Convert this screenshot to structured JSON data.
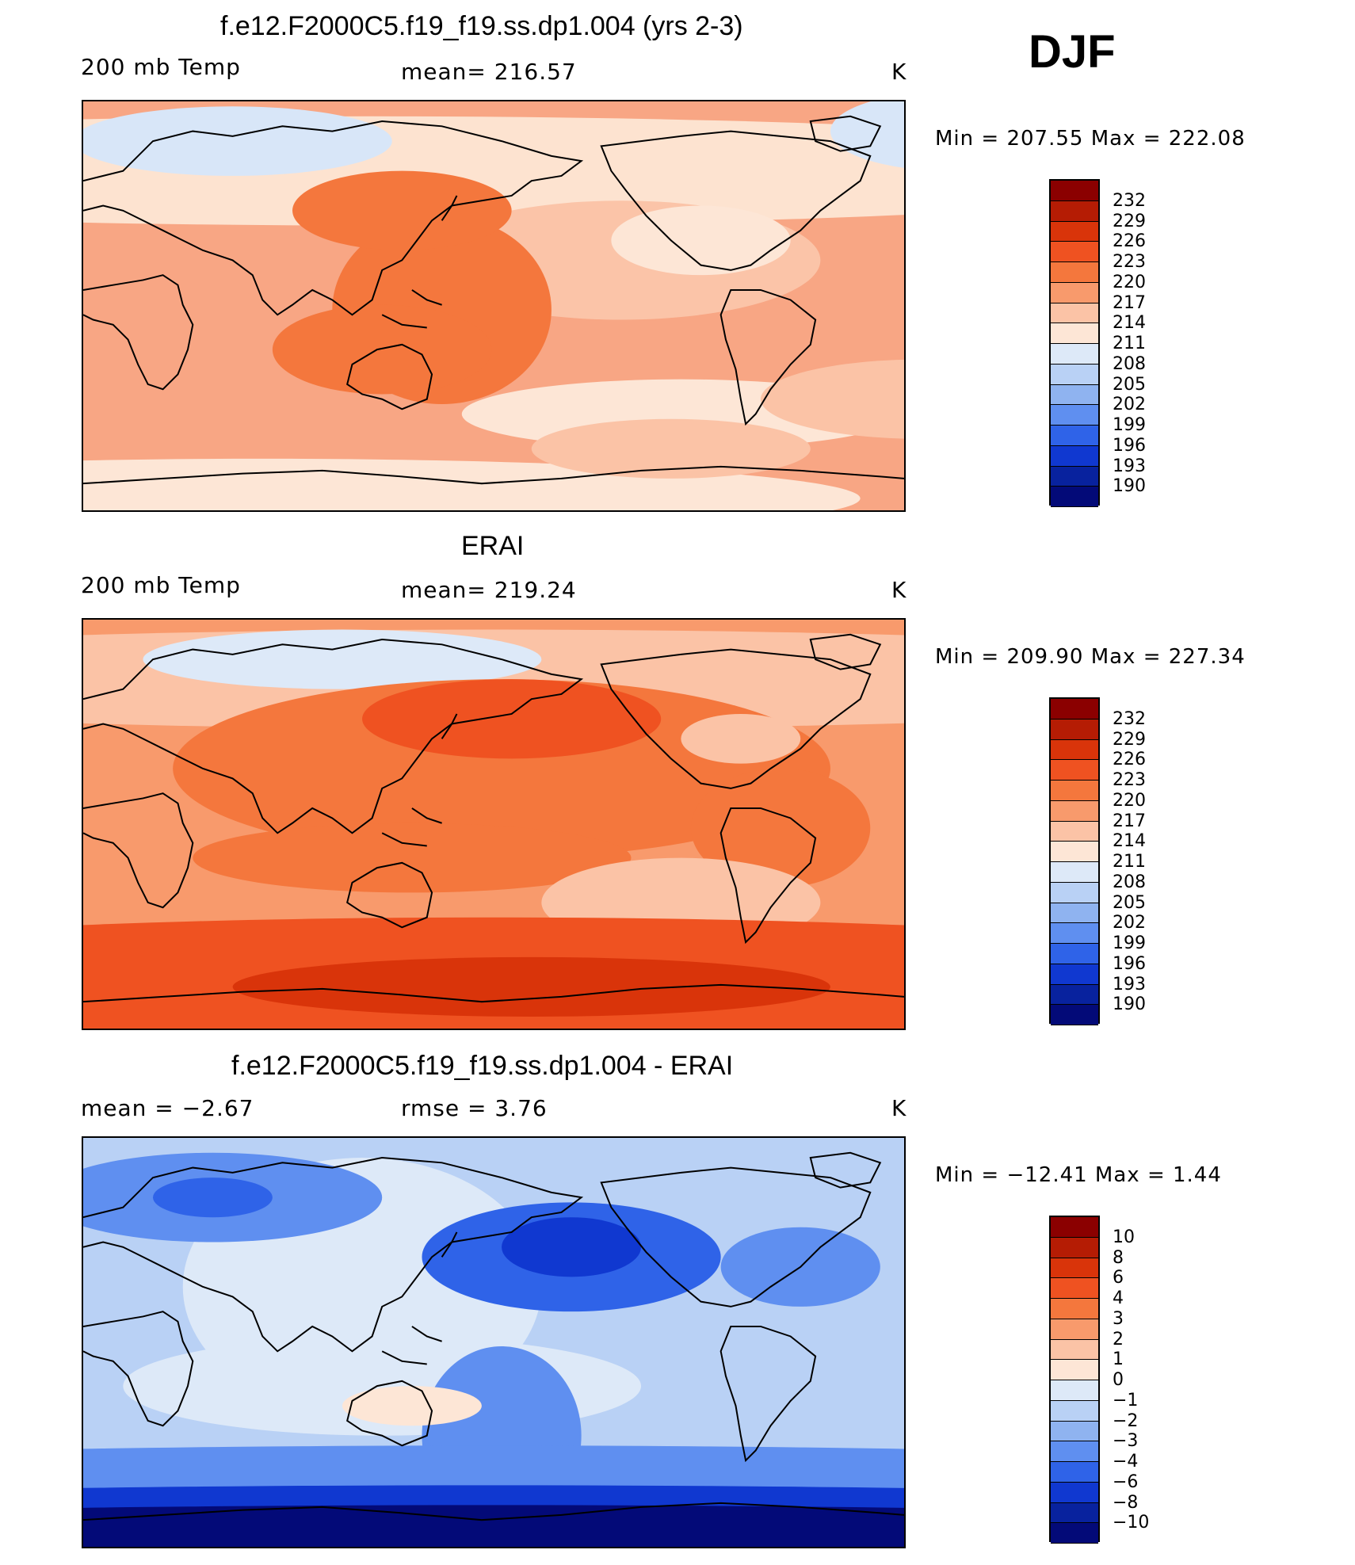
{
  "season_label": "DJF",
  "panels": [
    {
      "id": "model",
      "title": "f.e12.F2000C5.f19_f19.ss.dp1.004 (yrs 2-3)",
      "left_label": "200 mb Temp",
      "center_label": "mean=  216.57",
      "units": "K",
      "minmax": "Min  =  207.55  Max  =  222.08",
      "colorbar_labels": [
        "232",
        "229",
        "226",
        "223",
        "220",
        "217",
        "214",
        "211",
        "208",
        "205",
        "202",
        "199",
        "196",
        "193",
        "190"
      ],
      "colorbar_colors": [
        "#8b0000",
        "#b51c04",
        "#d9340a",
        "#ef5221",
        "#f4773d",
        "#f89a6c",
        "#fbc3a6",
        "#fde6d6",
        "#dde9f8",
        "#b9d1f5",
        "#8fb3f0",
        "#5f8ff0",
        "#2f63e8",
        "#1038d0",
        "#08229e",
        "#030a78"
      ],
      "field": {
        "base": "#f8a684",
        "blobs": [
          {
            "cx": 290,
            "cy": 70,
            "rx": 900,
            "ry": 55,
            "c": "#fde3d0"
          },
          {
            "cx": 150,
            "cy": 40,
            "rx": 160,
            "ry": 35,
            "c": "#d8e6f8"
          },
          {
            "cx": 870,
            "cy": 30,
            "rx": 120,
            "ry": 40,
            "c": "#d8e6f8"
          },
          {
            "cx": 540,
            "cy": 160,
            "rx": 200,
            "ry": 60,
            "c": "#fbc4a8"
          },
          {
            "cx": 620,
            "cy": 140,
            "rx": 90,
            "ry": 35,
            "c": "#fde6d6"
          },
          {
            "cx": 360,
            "cy": 210,
            "rx": 110,
            "ry": 95,
            "c": "#f4773d"
          },
          {
            "cx": 320,
            "cy": 110,
            "rx": 110,
            "ry": 40,
            "c": "#f4773d"
          },
          {
            "cx": 300,
            "cy": 250,
            "rx": 110,
            "ry": 45,
            "c": "#f4773d"
          },
          {
            "cx": 180,
            "cy": 400,
            "rx": 600,
            "ry": 40,
            "c": "#fde6d6"
          },
          {
            "cx": 600,
            "cy": 315,
            "rx": 220,
            "ry": 35,
            "c": "#fde6d6"
          },
          {
            "cx": 590,
            "cy": 350,
            "rx": 140,
            "ry": 30,
            "c": "#fbc3a6"
          },
          {
            "cx": 840,
            "cy": 300,
            "rx": 160,
            "ry": 40,
            "c": "#fbc3a6"
          }
        ]
      }
    },
    {
      "id": "obs",
      "title": "ERAI",
      "left_label": "200 mb Temp",
      "center_label": "mean=  219.24",
      "units": "K",
      "minmax": "Min  =  209.90  Max  =  227.34",
      "colorbar_labels": [
        "232",
        "229",
        "226",
        "223",
        "220",
        "217",
        "214",
        "211",
        "208",
        "205",
        "202",
        "199",
        "196",
        "193",
        "190"
      ],
      "colorbar_colors": [
        "#8b0000",
        "#b51c04",
        "#d9340a",
        "#ef5221",
        "#f4773d",
        "#f89a6c",
        "#fbc3a6",
        "#fde6d6",
        "#dde9f8",
        "#b9d1f5",
        "#8fb3f0",
        "#5f8ff0",
        "#2f63e8",
        "#1038d0",
        "#08229e",
        "#030a78"
      ],
      "field": {
        "base": "#f89a6c",
        "blobs": [
          {
            "cx": 410,
            "cy": 60,
            "rx": 900,
            "ry": 50,
            "c": "#fbc3a6"
          },
          {
            "cx": 260,
            "cy": 40,
            "rx": 200,
            "ry": 30,
            "c": "#dde9f8"
          },
          {
            "cx": 420,
            "cy": 150,
            "rx": 330,
            "ry": 90,
            "c": "#f4773d"
          },
          {
            "cx": 430,
            "cy": 100,
            "rx": 150,
            "ry": 40,
            "c": "#ef5221"
          },
          {
            "cx": 660,
            "cy": 120,
            "rx": 60,
            "ry": 25,
            "c": "#fbc3a6"
          },
          {
            "cx": 700,
            "cy": 210,
            "rx": 90,
            "ry": 60,
            "c": "#f4773d"
          },
          {
            "cx": 330,
            "cy": 240,
            "rx": 220,
            "ry": 35,
            "c": "#f4773d"
          },
          {
            "cx": 600,
            "cy": 285,
            "rx": 140,
            "ry": 45,
            "c": "#fbc3a6"
          },
          {
            "cx": 410,
            "cy": 370,
            "rx": 900,
            "ry": 70,
            "c": "#ef5221"
          },
          {
            "cx": 450,
            "cy": 370,
            "rx": 300,
            "ry": 30,
            "c": "#d9340a"
          }
        ]
      }
    },
    {
      "id": "diff",
      "title": "f.e12.F2000C5.f19_f19.ss.dp1.004 - ERAI",
      "left_label": "mean  =    −2.67",
      "center_label": "rmse  =      3.76",
      "units": "K",
      "minmax": "Min  = −12.41  Max  =       1.44",
      "colorbar_labels": [
        "10",
        "8",
        "6",
        "4",
        "3",
        "2",
        "1",
        "0",
        "−1",
        "−2",
        "−3",
        "−4",
        "−6",
        "−8",
        "−10"
      ],
      "colorbar_colors": [
        "#8b0000",
        "#b51c04",
        "#d9340a",
        "#ef5221",
        "#f4773d",
        "#f89a6c",
        "#fbc3a6",
        "#fde6d6",
        "#dde9f8",
        "#b9d1f5",
        "#8fb3f0",
        "#5f8ff0",
        "#2f63e8",
        "#1038d0",
        "#08229e",
        "#030a78"
      ],
      "field": {
        "base": "#b9d1f5",
        "blobs": [
          {
            "cx": 280,
            "cy": 150,
            "rx": 180,
            "ry": 130,
            "c": "#dde9f8"
          },
          {
            "cx": 300,
            "cy": 250,
            "rx": 260,
            "ry": 50,
            "c": "#dde9f8"
          },
          {
            "cx": 130,
            "cy": 60,
            "rx": 170,
            "ry": 45,
            "c": "#5f8ff0"
          },
          {
            "cx": 130,
            "cy": 60,
            "rx": 60,
            "ry": 20,
            "c": "#2f63e8"
          },
          {
            "cx": 490,
            "cy": 120,
            "rx": 150,
            "ry": 55,
            "c": "#2f63e8"
          },
          {
            "cx": 490,
            "cy": 110,
            "rx": 70,
            "ry": 30,
            "c": "#1038d0"
          },
          {
            "cx": 720,
            "cy": 130,
            "rx": 80,
            "ry": 40,
            "c": "#5f8ff0"
          },
          {
            "cx": 420,
            "cy": 300,
            "rx": 80,
            "ry": 90,
            "c": "#5f8ff0"
          },
          {
            "cx": 330,
            "cy": 270,
            "rx": 70,
            "ry": 20,
            "c": "#fde6d6"
          },
          {
            "cx": 410,
            "cy": 340,
            "rx": 900,
            "ry": 30,
            "c": "#5f8ff0"
          },
          {
            "cx": 410,
            "cy": 375,
            "rx": 900,
            "ry": 25,
            "c": "#1038d0"
          },
          {
            "cx": 410,
            "cy": 395,
            "rx": 900,
            "ry": 25,
            "c": "#030a78"
          }
        ]
      }
    }
  ]
}
